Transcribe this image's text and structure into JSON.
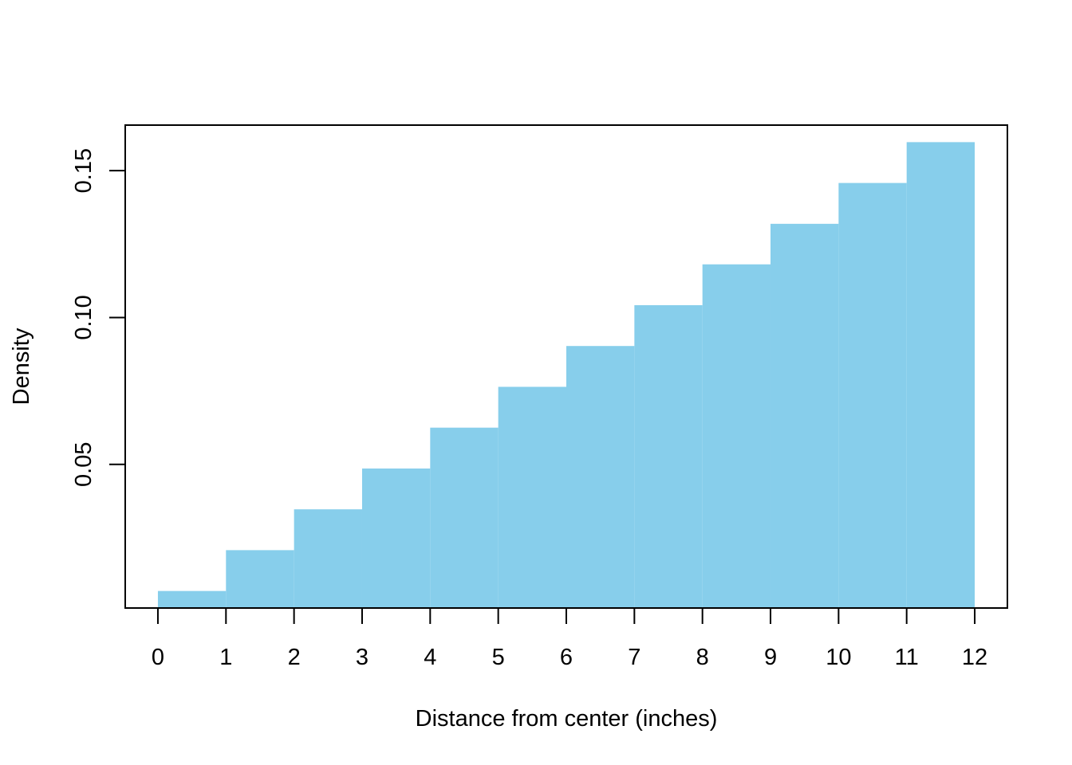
{
  "chart_data": {
    "type": "bar",
    "subtype": "histogram",
    "xlabel": "Distance from center (inches)",
    "ylabel": "Density",
    "bin_edges": [
      0,
      1,
      2,
      3,
      4,
      5,
      6,
      7,
      8,
      9,
      10,
      11,
      12
    ],
    "values": [
      0.0069,
      0.0208,
      0.0347,
      0.0486,
      0.0625,
      0.0764,
      0.0903,
      0.1042,
      0.1181,
      0.1319,
      0.1458,
      0.1597
    ],
    "xticks": [
      "0",
      "1",
      "2",
      "3",
      "4",
      "5",
      "6",
      "7",
      "8",
      "9",
      "10",
      "11",
      "12"
    ],
    "yticks": [
      "0.05",
      "0.10",
      "0.15"
    ],
    "ytick_values": [
      0.05,
      0.1,
      0.15
    ],
    "xlim": [
      -0.48,
      12.48
    ],
    "ylim": [
      0.0011,
      0.1655
    ],
    "grid": false,
    "legend": "none",
    "bar_color": "#87CEEB",
    "axis_color": "#000000"
  }
}
